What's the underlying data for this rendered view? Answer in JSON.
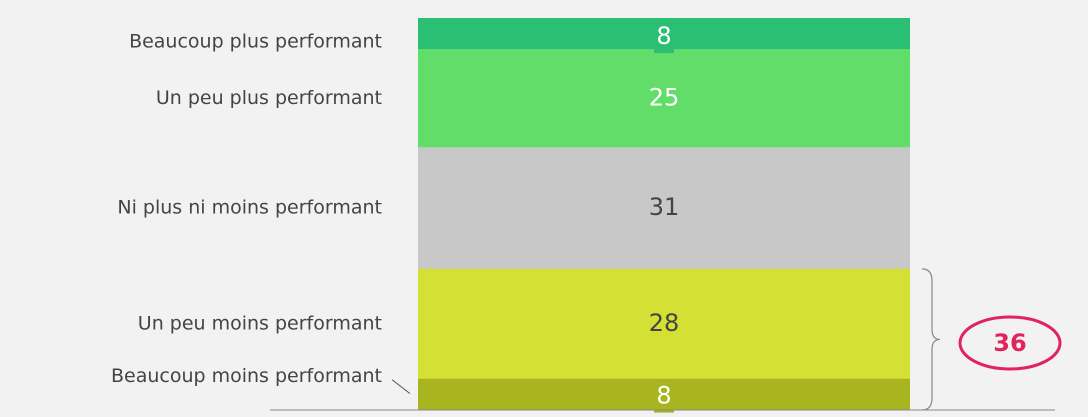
{
  "chart_data": {
    "type": "stacked-bar",
    "categories": [
      "Beaucoup plus performant",
      "Un peu plus performant",
      "Ni plus ni moins performant",
      "Un peu moins performant",
      "Beaucoup moins performant"
    ],
    "values": [
      8,
      25,
      31,
      28,
      8
    ],
    "colors": [
      "#2bbf74",
      "#62dd6a",
      "#c8c8c8",
      "#d4e033",
      "#a8b51e"
    ],
    "annotation": 36
  }
}
